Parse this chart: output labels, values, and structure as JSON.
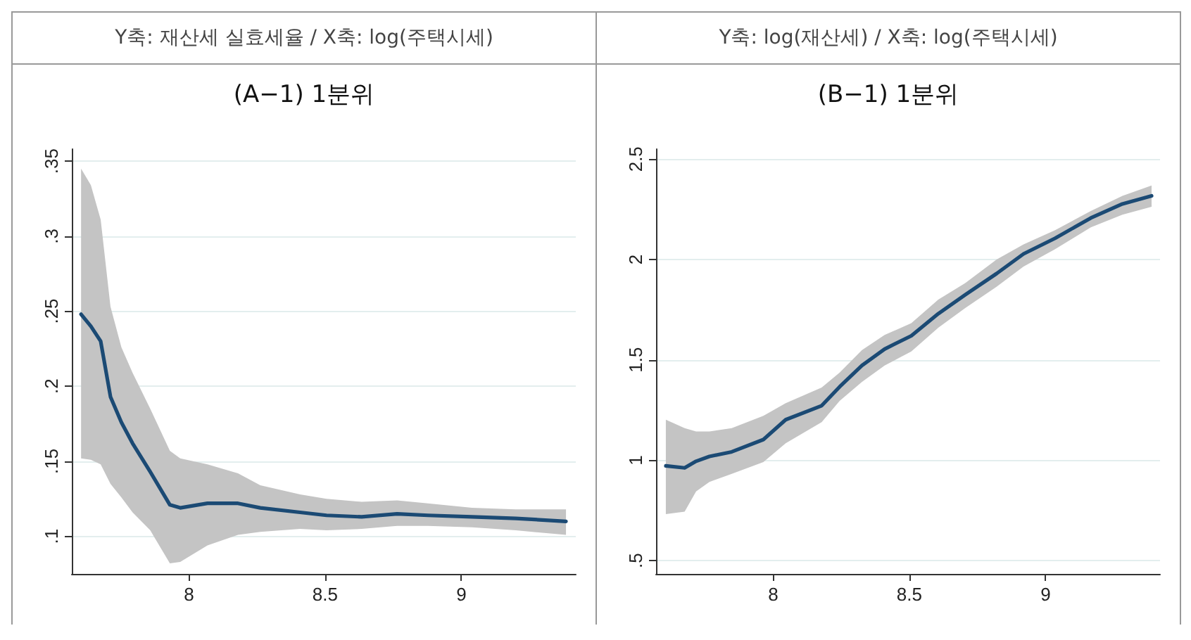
{
  "chart_data": [
    {
      "type": "line",
      "annotations": [
        "Y축: 재산세 실효세율 / X축: log(주택시세)"
      ],
      "title": "(A−1) 1분위",
      "x": [
        7.604,
        7.64,
        7.676,
        7.712,
        7.752,
        7.793,
        7.858,
        7.93,
        7.968,
        8.068,
        8.18,
        8.262,
        8.408,
        8.505,
        8.634,
        8.764,
        8.877,
        9.039,
        9.2,
        9.384
      ],
      "series": [
        {
          "color": "#1b4a74",
          "values": [
            0.248,
            0.24,
            0.23,
            0.193,
            0.176,
            0.162,
            0.143,
            0.121,
            0.119,
            0.122,
            0.122,
            0.119,
            0.116,
            0.114,
            0.113,
            0.115,
            0.114,
            0.113,
            0.112,
            0.11
          ],
          "upper": [
            0.345,
            0.334,
            0.311,
            0.253,
            0.226,
            0.209,
            0.185,
            0.157,
            0.152,
            0.148,
            0.142,
            0.134,
            0.128,
            0.125,
            0.123,
            0.124,
            0.122,
            0.119,
            0.118,
            0.118
          ],
          "lower": [
            0.152,
            0.151,
            0.148,
            0.135,
            0.126,
            0.116,
            0.104,
            0.082,
            0.083,
            0.094,
            0.101,
            0.103,
            0.105,
            0.104,
            0.105,
            0.107,
            0.107,
            0.106,
            0.104,
            0.101
          ]
        }
      ],
      "xlim": [
        7.57,
        9.42
      ],
      "xticks": [
        8,
        8.5,
        9
      ],
      "ylim": [
        0.075,
        0.358
      ],
      "yticks": [
        {
          "value": 0.1,
          "label": ".1"
        },
        {
          "value": 0.15,
          "label": ".15"
        },
        {
          "value": 0.2,
          "label": ".2"
        },
        {
          "value": 0.25,
          "label": ".25"
        },
        {
          "value": 0.3,
          "label": ".3"
        },
        {
          "value": 0.35,
          "label": ".35"
        }
      ],
      "grid": "y"
    },
    {
      "type": "line",
      "annotations": [
        "Y축: log(재산세) / X축: log(주택시세)"
      ],
      "title": "(B−1) 1분위",
      "x": [
        7.606,
        7.675,
        7.717,
        7.766,
        7.848,
        7.964,
        8.046,
        8.178,
        8.244,
        8.326,
        8.409,
        8.507,
        8.606,
        8.705,
        8.82,
        8.919,
        9.035,
        9.166,
        9.282,
        9.389
      ],
      "series": [
        {
          "color": "#1b4a74",
          "values": [
            0.972,
            0.962,
            0.995,
            1.019,
            1.042,
            1.103,
            1.202,
            1.272,
            1.366,
            1.472,
            1.554,
            1.62,
            1.73,
            1.824,
            1.93,
            2.028,
            2.106,
            2.207,
            2.277,
            2.317
          ],
          "upper": [
            1.202,
            1.16,
            1.143,
            1.143,
            1.16,
            1.221,
            1.284,
            1.362,
            1.437,
            1.549,
            1.624,
            1.683,
            1.8,
            1.883,
            2.0,
            2.075,
            2.146,
            2.242,
            2.317,
            2.369
          ],
          "lower": [
            0.732,
            0.744,
            0.845,
            0.892,
            0.932,
            0.991,
            1.085,
            1.19,
            1.296,
            1.39,
            1.472,
            1.542,
            1.66,
            1.758,
            1.864,
            1.965,
            2.052,
            2.16,
            2.223,
            2.263
          ]
        }
      ],
      "xlim": [
        7.57,
        9.42
      ],
      "xticks": [
        8,
        8.5,
        9
      ],
      "ylim": [
        0.434,
        2.55
      ],
      "yticks": [
        {
          "value": 0.5,
          "label": ".5"
        },
        1,
        1.5,
        2,
        2.5
      ],
      "grid": "y"
    }
  ]
}
